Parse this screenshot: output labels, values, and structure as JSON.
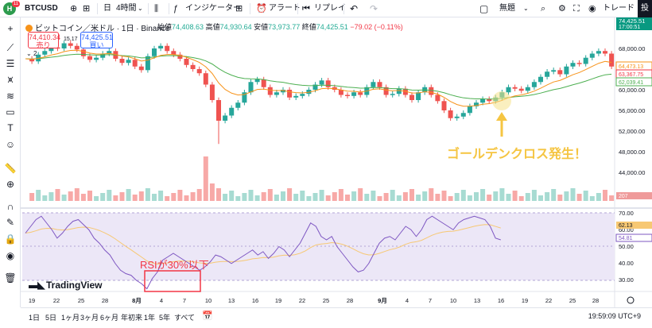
{
  "toolbar": {
    "user_badge": "11",
    "symbol": "BTCUSD",
    "interval_short": "日",
    "interval": "4時間",
    "indicators": "インジケーター",
    "alert": "アラート",
    "replay": "リプレイ",
    "layout_name": "無題",
    "trade": "トレード",
    "edge_label": "投"
  },
  "legend": {
    "title": "ビットコイン／米ドル · 1日 · Binance",
    "open_label": "始値",
    "open": "74,408.63",
    "high_label": "高値",
    "high": "74,930.64",
    "low_label": "安値",
    "low": "73,973.77",
    "close_label": "終値",
    "close": "74,425.51",
    "change": "−79.02 (−0.11%)"
  },
  "order_panel": {
    "sell_price": "74,410.34",
    "sell_label": "売り",
    "spread": "15.17",
    "buy_price": "74,425.51",
    "buy_label": "買い",
    "quantity": "2"
  },
  "price_axis": {
    "ticks": [
      "68,000.00",
      "64,000.00",
      "60,000.00",
      "56,000.00",
      "52,000.00",
      "48,000.00",
      "44,000.00"
    ],
    "last_price": "74,425.51",
    "countdown": "17:00:51",
    "ema_fast_label": "64,473.13",
    "ema_mid_label": "63,367.75",
    "ema_slow_label": "62,039.41",
    "volume_label": "207"
  },
  "rsi_axis": {
    "ticks": [
      "70.00",
      "60.00",
      "50.00",
      "40.00",
      "30.00"
    ],
    "value_label": "54.81",
    "ma_label": "62.13"
  },
  "time_axis": {
    "labels": [
      "19",
      "22",
      "25",
      "28",
      "8月",
      "4",
      "7",
      "10",
      "13",
      "16",
      "19",
      "22",
      "25",
      "28",
      "9月",
      "4",
      "7",
      "10",
      "13",
      "16",
      "19",
      "22",
      "25",
      "28"
    ]
  },
  "annotations": {
    "golden_cross": "ゴールデンクロス発生！",
    "rsi_note": "RSIが30%以下"
  },
  "branding": "TradingView",
  "bottom_bar": {
    "ranges": [
      "1日",
      "5日",
      "1ヶ月",
      "3ヶ月",
      "6ヶ月",
      "年初来",
      "1年",
      "5年",
      "すべて"
    ],
    "clock": "19:59:09 UTC+9"
  },
  "colors": {
    "up": "#26a69a",
    "down": "#ef5350",
    "ema_fast": "#f7931a",
    "ema_slow": "#4caf50",
    "rsi_line": "#7e57c2",
    "rsi_ma": "#f7c873",
    "annotation_yellow": "#f5c542",
    "annotation_red": "#f23645"
  }
}
